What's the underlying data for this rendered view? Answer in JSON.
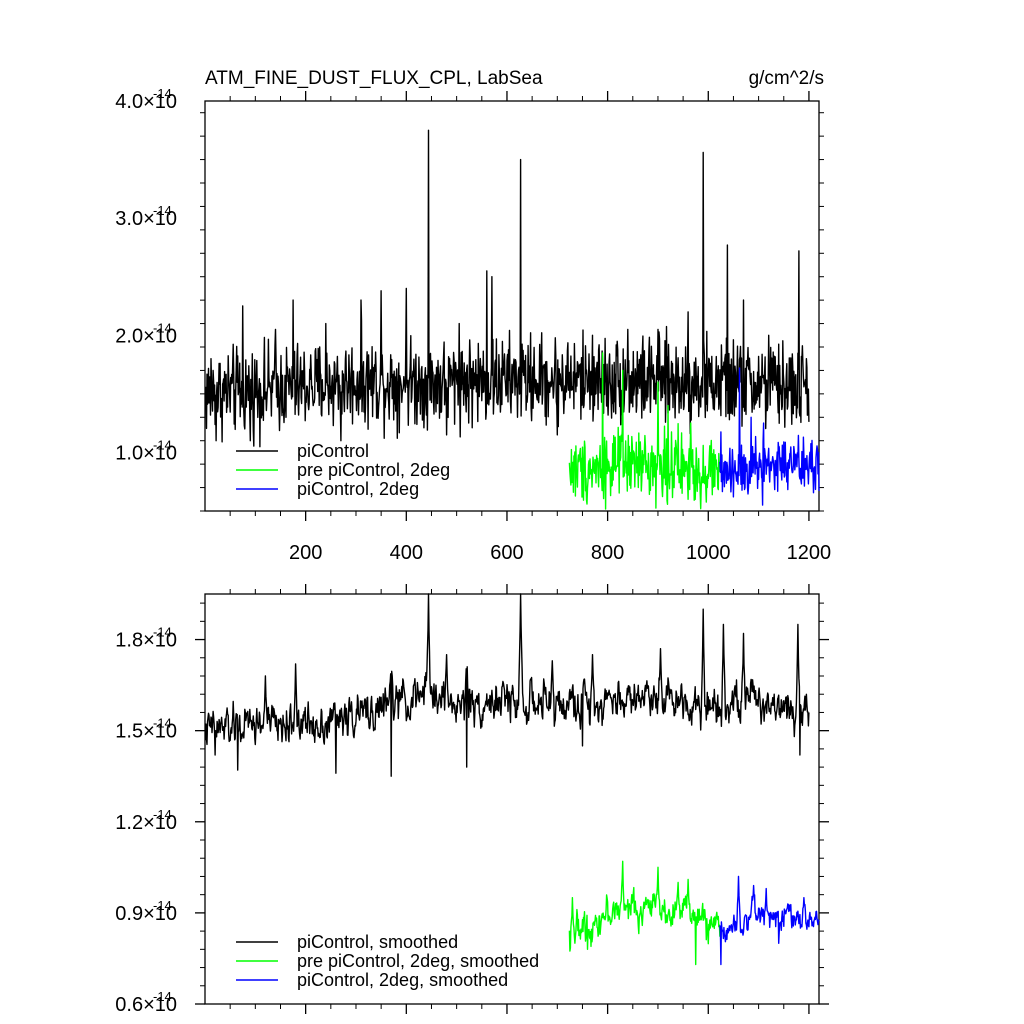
{
  "chart_data": [
    {
      "type": "line",
      "title": "ATM_FINE_DUST_FLUX_CPL, LabSea",
      "units": "g/cm^2/s",
      "xlim": [
        0,
        1220
      ],
      "ylim": [
        0.5,
        4.0
      ],
      "x_ticks": [
        200,
        400,
        600,
        800,
        1000,
        1200
      ],
      "x_tick_labels": [
        "200",
        "400",
        "600",
        "800",
        "1000",
        "1200"
      ],
      "y_ticks": [
        1.0,
        2.0,
        3.0,
        4.0
      ],
      "y_tick_mantissas": [
        "1.0",
        "2.0",
        "3.0",
        "4.0"
      ],
      "y_tick_times": "×10",
      "y_tick_exponent": "-14",
      "legend_position": "bottom-left",
      "series": [
        {
          "name": "piControl",
          "color": "#000000",
          "x_range": [
            1,
            1200
          ],
          "baseline": 1.55,
          "noise": 0.18,
          "anchors": [
            [
              1,
              1.5
            ],
            [
              150,
              1.55
            ],
            [
              300,
              1.6
            ],
            [
              450,
              1.6
            ],
            [
              600,
              1.62
            ],
            [
              800,
              1.62
            ],
            [
              1000,
              1.6
            ],
            [
              1200,
              1.55
            ]
          ],
          "peaks": [
            [
              12,
              1.8
            ],
            [
              75,
              2.25
            ],
            [
              140,
              2.05
            ],
            [
              175,
              2.3
            ],
            [
              240,
              2.1
            ],
            [
              310,
              2.3
            ],
            [
              350,
              2.38
            ],
            [
              400,
              2.4
            ],
            [
              444,
              3.75
            ],
            [
              505,
              2.1
            ],
            [
              560,
              2.55
            ],
            [
              570,
              2.5
            ],
            [
              627,
              3.5
            ],
            [
              770,
              2.0
            ],
            [
              840,
              2.05
            ],
            [
              900,
              2.05
            ],
            [
              960,
              2.2
            ],
            [
              990,
              3.56
            ],
            [
              1038,
              2.77
            ],
            [
              1070,
              2.3
            ],
            [
              1120,
              2.0
            ],
            [
              1180,
              2.72
            ],
            [
              1195,
              1.8
            ]
          ],
          "troughs": [
            [
              22,
              1.1
            ],
            [
              90,
              1.1
            ],
            [
              270,
              1.1
            ],
            [
              480,
              1.15
            ],
            [
              700,
              1.15
            ]
          ]
        },
        {
          "name": "pre piControl, 2deg",
          "color": "#00ff00",
          "x_range": [
            724,
            1023
          ],
          "baseline": 0.87,
          "noise": 0.14,
          "anchors": [
            [
              724,
              0.85
            ],
            [
              850,
              0.9
            ],
            [
              1023,
              0.85
            ]
          ],
          "peaks": [
            [
              790,
              1.85
            ],
            [
              830,
              1.7
            ],
            [
              900,
              1.6
            ],
            [
              920,
              1.4
            ],
            [
              965,
              1.25
            ]
          ],
          "troughs": [
            [
              985,
              0.52
            ],
            [
              960,
              0.6
            ]
          ]
        },
        {
          "name": "piControl, 2deg",
          "color": "#0000ff",
          "x_range": [
            1023,
            1220
          ],
          "baseline": 0.88,
          "noise": 0.13,
          "anchors": [
            [
              1023,
              0.85
            ],
            [
              1120,
              0.9
            ],
            [
              1220,
              0.88
            ]
          ],
          "peaks": [
            [
              1062,
              1.72
            ],
            [
              1085,
              1.3
            ],
            [
              1110,
              1.25
            ]
          ],
          "troughs": [
            [
              1108,
              0.55
            ],
            [
              1050,
              0.62
            ]
          ]
        }
      ]
    },
    {
      "type": "line",
      "title": "",
      "xlim": [
        0,
        1220
      ],
      "ylim": [
        0.6,
        1.95
      ],
      "x_ticks": [
        200,
        400,
        600,
        800,
        1000,
        1200
      ],
      "y_ticks": [
        0.6,
        0.9,
        1.2,
        1.5,
        1.8
      ],
      "y_tick_mantissas": [
        "0.6",
        "0.9",
        "1.2",
        "1.5",
        "1.8"
      ],
      "y_tick_times": "×10",
      "y_tick_exponent": "-14",
      "legend_position": "bottom-left",
      "series": [
        {
          "name": "piControl, smoothed",
          "color": "#000000",
          "x_range": [
            1,
            1200
          ],
          "baseline": 1.54,
          "noise": 0.06,
          "anchors": [
            [
              1,
              1.5
            ],
            [
              100,
              1.52
            ],
            [
              200,
              1.52
            ],
            [
              300,
              1.55
            ],
            [
              400,
              1.6
            ],
            [
              450,
              1.62
            ],
            [
              500,
              1.58
            ],
            [
              600,
              1.6
            ],
            [
              700,
              1.58
            ],
            [
              800,
              1.6
            ],
            [
              900,
              1.62
            ],
            [
              1000,
              1.58
            ],
            [
              1100,
              1.6
            ],
            [
              1200,
              1.57
            ]
          ],
          "peaks": [
            [
              120,
              1.68
            ],
            [
              180,
              1.72
            ],
            [
              370,
              1.75
            ],
            [
              444,
              1.95
            ],
            [
              480,
              1.75
            ],
            [
              520,
              1.78
            ],
            [
              627,
              1.97
            ],
            [
              690,
              1.73
            ],
            [
              770,
              1.75
            ],
            [
              905,
              1.77
            ],
            [
              990,
              1.9
            ],
            [
              1030,
              1.85
            ],
            [
              1070,
              1.82
            ],
            [
              1178,
              1.85
            ]
          ],
          "troughs": [
            [
              20,
              1.42
            ],
            [
              65,
              1.37
            ],
            [
              260,
              1.36
            ],
            [
              370,
              1.35
            ],
            [
              520,
              1.38
            ],
            [
              750,
              1.45
            ],
            [
              1182,
              1.42
            ]
          ]
        },
        {
          "name": "pre piControl, 2deg, smoothed",
          "color": "#00ff00",
          "x_range": [
            724,
            1023
          ],
          "baseline": 0.88,
          "noise": 0.05,
          "anchors": [
            [
              724,
              0.82
            ],
            [
              800,
              0.9
            ],
            [
              900,
              0.92
            ],
            [
              1023,
              0.86
            ]
          ],
          "peaks": [
            [
              730,
              0.95
            ],
            [
              830,
              1.07
            ],
            [
              900,
              1.05
            ],
            [
              940,
              1.0
            ],
            [
              960,
              1.01
            ]
          ],
          "troughs": [
            [
              975,
              0.73
            ],
            [
              760,
              0.78
            ]
          ]
        },
        {
          "name": "piControl, 2deg, smoothed",
          "color": "#0000ff",
          "x_range": [
            1023,
            1220
          ],
          "baseline": 0.88,
          "noise": 0.04,
          "anchors": [
            [
              1023,
              0.84
            ],
            [
              1100,
              0.9
            ],
            [
              1220,
              0.87
            ]
          ],
          "peaks": [
            [
              1060,
              1.02
            ],
            [
              1090,
              0.99
            ],
            [
              1115,
              0.98
            ],
            [
              1190,
              0.95
            ]
          ],
          "troughs": [
            [
              1025,
              0.73
            ],
            [
              1140,
              0.8
            ]
          ]
        }
      ]
    }
  ]
}
